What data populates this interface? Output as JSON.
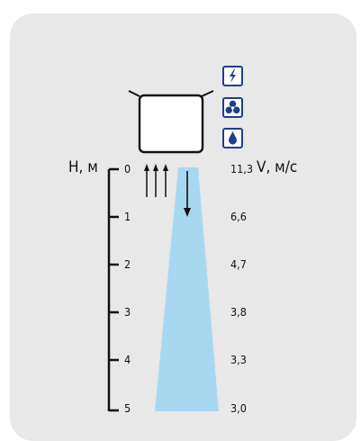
{
  "diagram": {
    "height_axis_title": "H, м",
    "speed_axis_title": "V, м/с",
    "height_ticks": [
      "0",
      "1",
      "2",
      "3",
      "4",
      "5"
    ],
    "speeds": [
      "11,3",
      "6,6",
      "4,7",
      "3,8",
      "3,3",
      "3,0"
    ],
    "icons": [
      "lightning-icon",
      "fan-icon",
      "water-drop-icon"
    ],
    "colors": {
      "background": "#e8e8e8",
      "air_jet": "#a8d8f0",
      "icon_border": "#1f3f8a",
      "lines": "#111111"
    }
  }
}
